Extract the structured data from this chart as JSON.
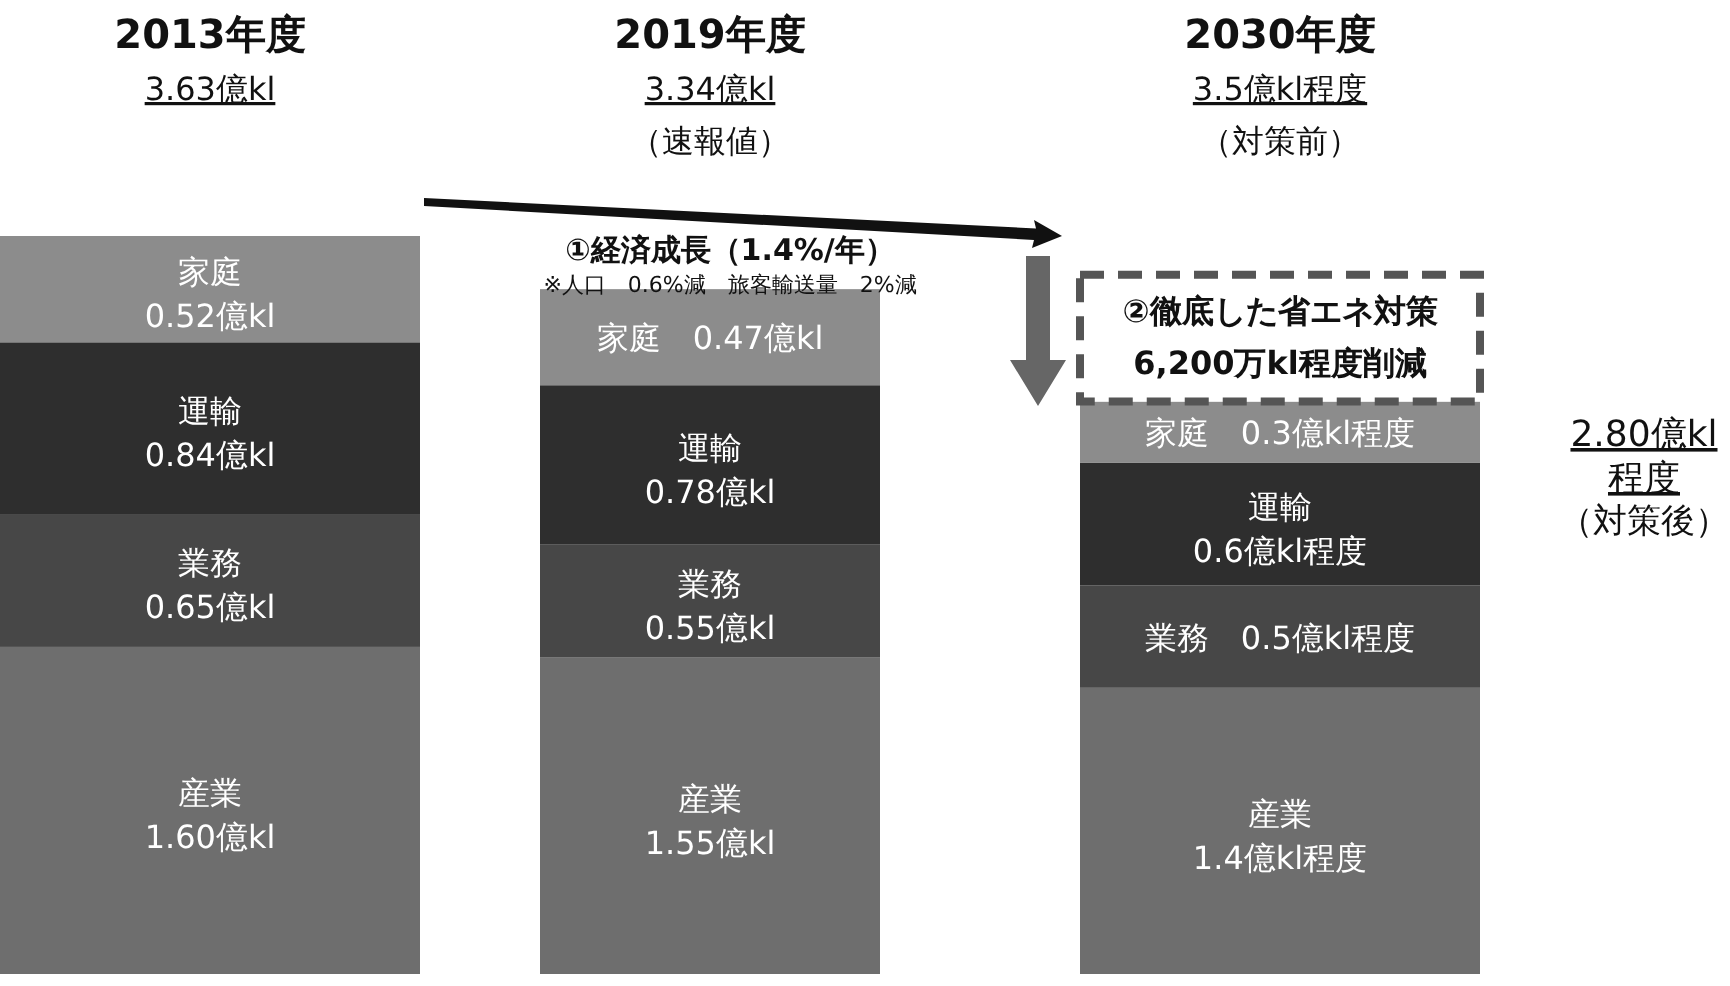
{
  "chart_data": {
    "type": "bar",
    "stacked": true,
    "data_labels": false,
    "categories": [
      "2013年度",
      "2019年度",
      "2030年度"
    ],
    "series": [
      {
        "name": "産業",
        "color": "#6e6e6e",
        "values": [
          1.6,
          1.55,
          1.4
        ],
        "value_labels": [
          "1.60億kl",
          "1.55億kl",
          "1.4億kl程度"
        ]
      },
      {
        "name": "業務",
        "color": "#474747",
        "values": [
          0.65,
          0.55,
          0.5
        ],
        "value_labels": [
          "0.65億kl",
          "0.55億kl",
          "0.5億kl程度"
        ]
      },
      {
        "name": "運輸",
        "color": "#2e2e2e",
        "values": [
          0.84,
          0.78,
          0.6
        ],
        "value_labels": [
          "0.84億kl",
          "0.78億kl",
          "0.6億kl程度"
        ]
      },
      {
        "name": "家庭",
        "color": "#8c8c8c",
        "values": [
          0.52,
          0.47,
          0.3
        ],
        "value_labels": [
          "0.52億kl",
          "0.47億kl",
          "0.3億kl程度"
        ]
      },
      {
        "color": "#ffffff",
        "line_style": "dashed",
        "values": [
          null,
          null,
          0.62
        ],
        "value_labels": [
          null,
          null,
          "②徹底した省エネ対策\n6,200万kl程度削減"
        ]
      }
    ],
    "annotations": [
      "3.63億kl",
      "3.34億kl",
      "3.5億kl程度",
      "（速報値）",
      "（対策前）",
      "①経済成長（1.4%/年）",
      "※人口　0.6%減　旅客輸送量　2%減",
      "2.80億kl\n程度",
      "（対策後）"
    ]
  }
}
